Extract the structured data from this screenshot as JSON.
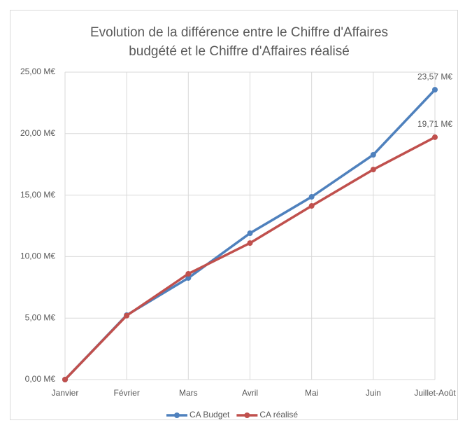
{
  "chart_data": {
    "type": "line",
    "title": [
      "Evolution de la différence entre le Chiffre d'Affaires",
      "budgété et le  Chiffre d'Affaires réalisé"
    ],
    "categories": [
      "Janvier",
      "Février",
      "Mars",
      "Avril",
      "Mai",
      "Juin",
      "Juillet-Août"
    ],
    "series": [
      {
        "name": "CA Budget",
        "color": "#4f81bd",
        "values": [
          0,
          5.24,
          8.26,
          11.9,
          14.86,
          18.28,
          23.57
        ],
        "value_labels": [
          null,
          null,
          null,
          null,
          null,
          null,
          "23,57 M€"
        ]
      },
      {
        "name": "CA réalisé",
        "color": "#c0504d",
        "values": [
          0,
          5.2,
          8.6,
          11.1,
          14.12,
          17.08,
          19.71
        ],
        "value_labels": [
          null,
          null,
          null,
          null,
          null,
          null,
          "19,71 M€"
        ]
      }
    ],
    "ylim": [
      0,
      25
    ],
    "yticks": [
      {
        "value": 0,
        "label": "0,00 M€"
      },
      {
        "value": 5,
        "label": "5,00 M€"
      },
      {
        "value": 10,
        "label": "10,00 M€"
      },
      {
        "value": 15,
        "label": "15,00 M€"
      },
      {
        "value": 20,
        "label": "20,00 M€"
      },
      {
        "value": 25,
        "label": "25,00 M€"
      }
    ],
    "grid": true,
    "legend": "bottom"
  }
}
